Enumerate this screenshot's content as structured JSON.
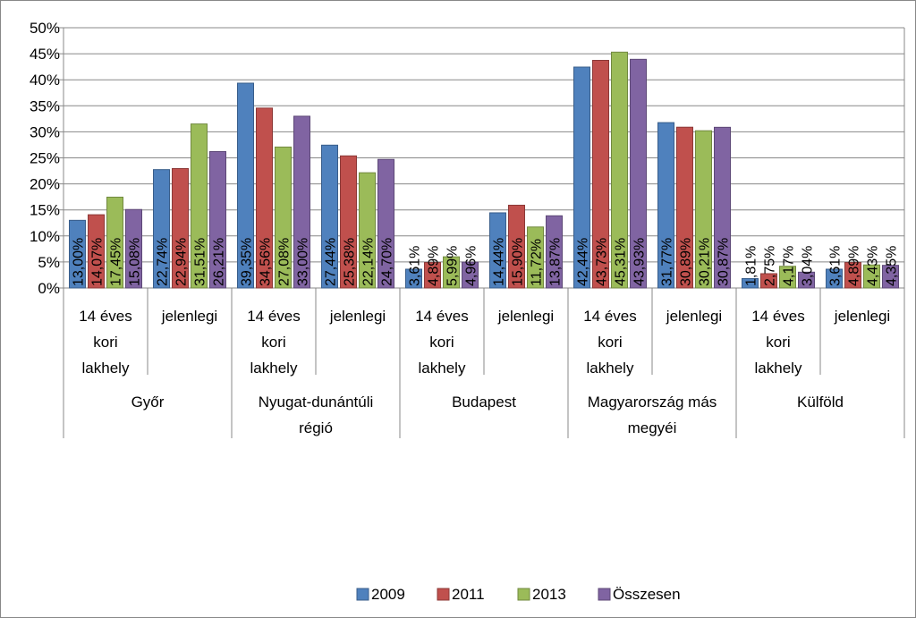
{
  "chart_data": {
    "type": "bar",
    "ylim": [
      0,
      50
    ],
    "y_ticks": [
      "0%",
      "5%",
      "10%",
      "15%",
      "20%",
      "25%",
      "30%",
      "35%",
      "40%",
      "45%",
      "50%"
    ],
    "grid": true,
    "legend_position": "bottom",
    "groups": [
      {
        "label": "Győr",
        "categories": [
          "14 éves kori lakhely",
          "jelenlegi"
        ]
      },
      {
        "label": "Nyugat-dunántúli régió",
        "categories": [
          "14 éves kori lakhely",
          "jelenlegi"
        ]
      },
      {
        "label": "Budapest",
        "categories": [
          "14 éves kori lakhely",
          "jelenlegi"
        ]
      },
      {
        "label": "Magyarország más megyéi",
        "categories": [
          "14 éves kori lakhely",
          "jelenlegi"
        ]
      },
      {
        "label": "Külföld",
        "categories": [
          "14 éves kori lakhely",
          "jelenlegi"
        ]
      }
    ],
    "category_lines": [
      [
        "14 éves",
        "kori",
        "lakhely"
      ],
      [
        "jelenlegi"
      ],
      [
        "14 éves",
        "kori",
        "lakhely"
      ],
      [
        "jelenlegi"
      ],
      [
        "14 éves",
        "kori",
        "lakhely"
      ],
      [
        "jelenlegi"
      ],
      [
        "14 éves",
        "kori",
        "lakhely"
      ],
      [
        "jelenlegi"
      ],
      [
        "14 éves",
        "kori",
        "lakhely"
      ],
      [
        "jelenlegi"
      ]
    ],
    "group_lines": [
      [
        "Győr"
      ],
      [
        "Nyugat-dunántúli",
        "régió"
      ],
      [
        "Budapest"
      ],
      [
        "Magyarország más",
        "megyéi"
      ],
      [
        "Külföld"
      ]
    ],
    "series": [
      {
        "name": "2009",
        "color": "#4F81BD",
        "stroke": "#385D8A",
        "values": [
          13.0,
          22.74,
          39.35,
          27.44,
          3.61,
          14.44,
          42.44,
          31.77,
          1.81,
          3.61
        ],
        "labels": [
          "13,00%",
          "22,74%",
          "39,35%",
          "27,44%",
          "3,61%",
          "14,44%",
          "42,44%",
          "31,77%",
          "1,81%",
          "3,61%"
        ]
      },
      {
        "name": "2011",
        "color": "#C0504D",
        "stroke": "#8C3836",
        "values": [
          14.07,
          22.94,
          34.56,
          25.38,
          4.89,
          15.9,
          43.73,
          30.89,
          2.75,
          4.89
        ],
        "labels": [
          "14,07%",
          "22,94%",
          "34,56%",
          "25,38%",
          "4,89%",
          "15,90%",
          "43,73%",
          "30,89%",
          "2,75%",
          "4,89%"
        ]
      },
      {
        "name": "2013",
        "color": "#9BBB59",
        "stroke": "#71893F",
        "values": [
          17.45,
          31.51,
          27.08,
          22.14,
          5.99,
          11.72,
          45.31,
          30.21,
          4.17,
          4.43
        ],
        "labels": [
          "17,45%",
          "31,51%",
          "27,08%",
          "22,14%",
          "5,99%",
          "11,72%",
          "45,31%",
          "30,21%",
          "4,17%",
          "4,43%"
        ]
      },
      {
        "name": "Összesen",
        "color": "#8064A2",
        "stroke": "#5C4776",
        "values": [
          15.08,
          26.21,
          33.0,
          24.7,
          4.96,
          13.87,
          43.93,
          30.87,
          3.04,
          4.35
        ],
        "labels": [
          "15,08%",
          "26,21%",
          "33,00%",
          "24,70%",
          "4,96%",
          "13,87%",
          "43,93%",
          "30,87%",
          "3,04%",
          "4,35%"
        ]
      }
    ]
  }
}
